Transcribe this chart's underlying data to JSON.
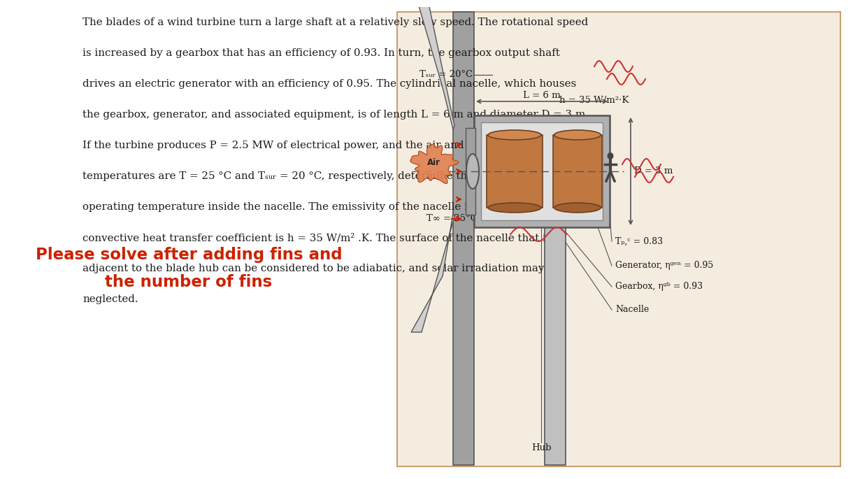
{
  "bg": "#ffffff",
  "text_color": "#1a1a1a",
  "red_color": "#cc2200",
  "dark_gray": "#555555",
  "nacelle_gray": "#b0b0b0",
  "inner_gray": "#e0e0e0",
  "comp_orange": "#c07840",
  "comp_top": "#d08850",
  "comp_bot": "#a06030",
  "hub_gray": "#888888",
  "tower_gray": "#c0c0c0",
  "wave_color": "#cc3333",
  "box_bg": "#f5e8d8",
  "box_edge": "#c8a878",
  "paragraph": "The blades of a wind turbine turn a large shaft at a relatively slow speed. The rotational speed\nis increased by a gearbox that has an efficiency of 0.93. In turn, the gearbox output shaft\ndrives an electric generator with an efficiency of 0.95. The cylindrical nacelle, which houses\nthe gearbox, generator, and associated equipment, is of length L = 6 m and diameter D = 3 m.\nIf the turbine produces P = 2.5 MW of electrical power, and the air and surroundings\ntemperatures are T = 25 °C and Tₛᵤᵣ = 20 °C, respectively, determine the minimum possible\noperating temperature inside the nacelle. The emissivity of the nacelle is 0.83, and the\nconvective heat transfer coefficient is h = 35 W/m² .K. The surface of the nacelle that is\nadjacent to the blade hub can be considered to be adiabatic, and solar irradiation may be\nneglected.",
  "red1": "Please solve after adding fins and",
  "red2": "the number of fins",
  "lbl_tsur": "Tₛᵤᵣ = 20°C",
  "lbl_h": "h = 35 W/m²·K",
  "lbl_L": "L = 6 m",
  "lbl_D": "D = 3 m",
  "lbl_air": "Air",
  "lbl_Tinf": "T∞ = 25°C",
  "lbl_eps": "Tₚ,ᶜ = 0.83",
  "lbl_gen": "Generator, ηᵍᵉⁿ = 0.95",
  "lbl_gb": "Gearbox, ηᵍᵇ = 0.93",
  "lbl_nac": "Nacelle",
  "lbl_hub": "Hub"
}
